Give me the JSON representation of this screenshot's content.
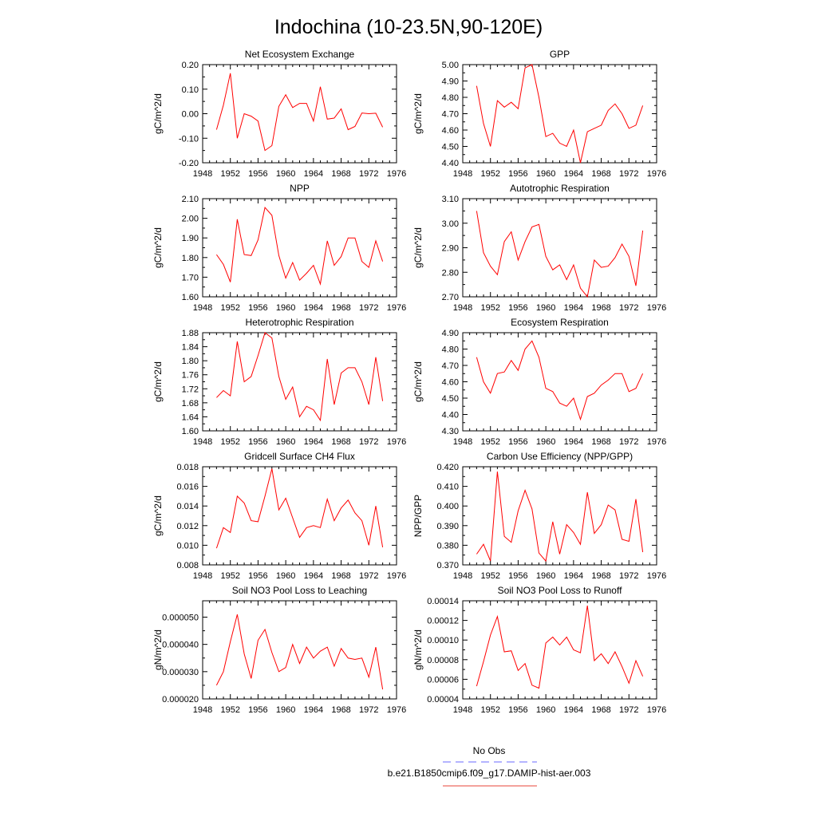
{
  "page_title": "Indochina (10-23.5N,90-120E)",
  "legend": {
    "entries": [
      {
        "label": "No Obs",
        "color": "#6a6aff",
        "dash": true
      },
      {
        "label": "b.e21.B1850cmip6.f09_g17.DAMIP-hist-aer.003",
        "color": "#e8443a",
        "dash": false
      }
    ]
  },
  "colors": {
    "series": "#ff0000"
  },
  "chart_data": [
    {
      "type": "line",
      "title": "Net Ecosystem Exchange",
      "ylabel": "gC/m^2/d",
      "xlim": [
        1948,
        1976
      ],
      "ylim": [
        -0.2,
        0.2
      ],
      "x_ticks": [
        "1948",
        "1952",
        "1956",
        "1960",
        "1964",
        "1968",
        "1972",
        "1976"
      ],
      "y_ticks": [
        "-0.20",
        "-0.10",
        "0.00",
        "0.10",
        "0.20"
      ],
      "series": [
        {
          "x": [
            1950,
            1951,
            1952,
            1953,
            1954,
            1955,
            1956,
            1957,
            1958,
            1959,
            1960,
            1961,
            1962,
            1963,
            1964,
            1965,
            1966,
            1967,
            1968,
            1969,
            1970,
            1971,
            1972,
            1973,
            1974
          ],
          "values": [
            -0.065,
            0.035,
            0.165,
            -0.1,
            0.0,
            -0.01,
            -0.03,
            -0.15,
            -0.13,
            0.03,
            0.077,
            0.025,
            0.042,
            0.042,
            -0.03,
            0.11,
            -0.022,
            -0.018,
            0.02,
            -0.065,
            -0.052,
            0.003,
            0.0,
            0.002,
            -0.055
          ]
        }
      ]
    },
    {
      "type": "line",
      "title": "GPP",
      "ylabel": "gC/m^2/d",
      "xlim": [
        1948,
        1976
      ],
      "ylim": [
        4.4,
        5.0
      ],
      "x_ticks": [
        "1948",
        "1952",
        "1956",
        "1960",
        "1964",
        "1968",
        "1972",
        "1976"
      ],
      "y_ticks": [
        "4.40",
        "4.50",
        "4.60",
        "4.70",
        "4.80",
        "4.90",
        "5.00"
      ],
      "series": [
        {
          "x": [
            1950,
            1951,
            1952,
            1953,
            1954,
            1955,
            1956,
            1957,
            1958,
            1959,
            1960,
            1961,
            1962,
            1963,
            1964,
            1965,
            1966,
            1967,
            1968,
            1969,
            1970,
            1971,
            1972,
            1973,
            1974
          ],
          "values": [
            4.87,
            4.64,
            4.5,
            4.78,
            4.74,
            4.77,
            4.73,
            4.98,
            5.0,
            4.8,
            4.56,
            4.58,
            4.52,
            4.5,
            4.6,
            4.4,
            4.59,
            4.61,
            4.63,
            4.72,
            4.76,
            4.7,
            4.61,
            4.63,
            4.75
          ]
        }
      ]
    },
    {
      "type": "line",
      "title": "NPP",
      "ylabel": "gC/m^2/d",
      "xlim": [
        1948,
        1976
      ],
      "ylim": [
        1.6,
        2.1
      ],
      "x_ticks": [
        "1948",
        "1952",
        "1956",
        "1960",
        "1964",
        "1968",
        "1972",
        "1976"
      ],
      "y_ticks": [
        "1.60",
        "1.70",
        "1.80",
        "1.90",
        "2.00",
        "2.10"
      ],
      "series": [
        {
          "x": [
            1950,
            1951,
            1952,
            1953,
            1954,
            1955,
            1956,
            1957,
            1958,
            1959,
            1960,
            1961,
            1962,
            1963,
            1964,
            1965,
            1966,
            1967,
            1968,
            1969,
            1970,
            1971,
            1972,
            1973,
            1974
          ],
          "values": [
            1.815,
            1.765,
            1.675,
            1.995,
            1.815,
            1.81,
            1.89,
            2.055,
            2.015,
            1.81,
            1.695,
            1.775,
            1.685,
            1.72,
            1.76,
            1.665,
            1.885,
            1.76,
            1.805,
            1.9,
            1.9,
            1.78,
            1.75,
            1.885,
            1.78
          ]
        }
      ]
    },
    {
      "type": "line",
      "title": "Autotrophic Respiration",
      "ylabel": "gC/m^2/d",
      "xlim": [
        1948,
        1976
      ],
      "ylim": [
        2.7,
        3.1
      ],
      "x_ticks": [
        "1948",
        "1952",
        "1956",
        "1960",
        "1964",
        "1968",
        "1972",
        "1976"
      ],
      "y_ticks": [
        "2.70",
        "2.80",
        "2.90",
        "3.00",
        "3.10"
      ],
      "series": [
        {
          "x": [
            1950,
            1951,
            1952,
            1953,
            1954,
            1955,
            1956,
            1957,
            1958,
            1959,
            1960,
            1961,
            1962,
            1963,
            1964,
            1965,
            1966,
            1967,
            1968,
            1969,
            1970,
            1971,
            1972,
            1973,
            1974
          ],
          "values": [
            3.05,
            2.88,
            2.825,
            2.79,
            2.925,
            2.965,
            2.85,
            2.925,
            2.985,
            2.995,
            2.865,
            2.81,
            2.83,
            2.77,
            2.83,
            2.735,
            2.7,
            2.85,
            2.82,
            2.825,
            2.86,
            2.915,
            2.865,
            2.745,
            2.97
          ]
        }
      ]
    },
    {
      "type": "line",
      "title": "Heterotrophic Respiration",
      "ylabel": "gC/m^2/d",
      "xlim": [
        1948,
        1976
      ],
      "ylim": [
        1.6,
        1.88
      ],
      "x_ticks": [
        "1948",
        "1952",
        "1956",
        "1960",
        "1964",
        "1968",
        "1972",
        "1976"
      ],
      "y_ticks": [
        "1.60",
        "1.64",
        "1.68",
        "1.72",
        "1.76",
        "1.80",
        "1.84",
        "1.88"
      ],
      "series": [
        {
          "x": [
            1950,
            1951,
            1952,
            1953,
            1954,
            1955,
            1956,
            1957,
            1958,
            1959,
            1960,
            1961,
            1962,
            1963,
            1964,
            1965,
            1966,
            1967,
            1968,
            1969,
            1970,
            1971,
            1972,
            1973,
            1974
          ],
          "values": [
            1.695,
            1.715,
            1.7,
            1.855,
            1.74,
            1.755,
            1.815,
            1.88,
            1.865,
            1.755,
            1.69,
            1.725,
            1.64,
            1.67,
            1.66,
            1.63,
            1.805,
            1.675,
            1.765,
            1.78,
            1.78,
            1.74,
            1.675,
            1.81,
            1.685
          ]
        }
      ]
    },
    {
      "type": "line",
      "title": "Ecosystem Respiration",
      "ylabel": "gC/m^2/d",
      "xlim": [
        1948,
        1976
      ],
      "ylim": [
        4.3,
        4.9
      ],
      "x_ticks": [
        "1948",
        "1952",
        "1956",
        "1960",
        "1964",
        "1968",
        "1972",
        "1976"
      ],
      "y_ticks": [
        "4.30",
        "4.40",
        "4.50",
        "4.60",
        "4.70",
        "4.80",
        "4.90"
      ],
      "series": [
        {
          "x": [
            1950,
            1951,
            1952,
            1953,
            1954,
            1955,
            1956,
            1957,
            1958,
            1959,
            1960,
            1961,
            1962,
            1963,
            1964,
            1965,
            1966,
            1967,
            1968,
            1969,
            1970,
            1971,
            1972,
            1973,
            1974
          ],
          "values": [
            4.75,
            4.6,
            4.53,
            4.65,
            4.66,
            4.73,
            4.67,
            4.8,
            4.85,
            4.75,
            4.56,
            4.54,
            4.47,
            4.45,
            4.5,
            4.37,
            4.51,
            4.53,
            4.58,
            4.61,
            4.65,
            4.65,
            4.54,
            4.56,
            4.65
          ]
        }
      ]
    },
    {
      "type": "line",
      "title": "Gridcell Surface CH4 Flux",
      "ylabel": "gC/m^2/d",
      "xlim": [
        1948,
        1976
      ],
      "ylim": [
        0.008,
        0.018
      ],
      "x_ticks": [
        "1948",
        "1952",
        "1956",
        "1960",
        "1964",
        "1968",
        "1972",
        "1976"
      ],
      "y_ticks": [
        "0.008",
        "0.010",
        "0.012",
        "0.014",
        "0.016",
        "0.018"
      ],
      "series": [
        {
          "x": [
            1950,
            1951,
            1952,
            1953,
            1954,
            1955,
            1956,
            1957,
            1958,
            1959,
            1960,
            1961,
            1962,
            1963,
            1964,
            1965,
            1966,
            1967,
            1968,
            1969,
            1970,
            1971,
            1972,
            1973,
            1974
          ],
          "values": [
            0.0097,
            0.0118,
            0.0113,
            0.015,
            0.0143,
            0.0125,
            0.0124,
            0.015,
            0.0178,
            0.0136,
            0.0148,
            0.0128,
            0.0108,
            0.0118,
            0.012,
            0.0118,
            0.0147,
            0.0125,
            0.0138,
            0.0146,
            0.0133,
            0.0125,
            0.01,
            0.014,
            0.0098
          ]
        }
      ]
    },
    {
      "type": "line",
      "title": "Carbon Use Efficiency (NPP/GPP)",
      "ylabel": "NPP/GPP",
      "xlim": [
        1948,
        1976
      ],
      "ylim": [
        0.37,
        0.42
      ],
      "x_ticks": [
        "1948",
        "1952",
        "1956",
        "1960",
        "1964",
        "1968",
        "1972",
        "1976"
      ],
      "y_ticks": [
        "0.370",
        "0.380",
        "0.390",
        "0.400",
        "0.410",
        "0.420"
      ],
      "series": [
        {
          "x": [
            1950,
            1951,
            1952,
            1953,
            1954,
            1955,
            1956,
            1957,
            1958,
            1959,
            1960,
            1961,
            1962,
            1963,
            1964,
            1965,
            1966,
            1967,
            1968,
            1969,
            1970,
            1971,
            1972,
            1973,
            1974
          ],
          "values": [
            0.3755,
            0.3805,
            0.372,
            0.4175,
            0.3845,
            0.3815,
            0.3975,
            0.408,
            0.3985,
            0.376,
            0.372,
            0.392,
            0.3755,
            0.3905,
            0.3865,
            0.3805,
            0.407,
            0.386,
            0.3905,
            0.4005,
            0.398,
            0.383,
            0.382,
            0.4035,
            0.3765
          ]
        }
      ]
    },
    {
      "type": "line",
      "title": "Soil NO3 Pool Loss to Leaching",
      "ylabel": "gN/m^2/d",
      "xlim": [
        1948,
        1976
      ],
      "ylim": [
        2e-05,
        5.6e-05
      ],
      "x_ticks": [
        "1948",
        "1952",
        "1956",
        "1960",
        "1964",
        "1968",
        "1972",
        "1976"
      ],
      "y_ticks": [
        "0.000020",
        "0.000030",
        "0.000040",
        "0.000050"
      ],
      "y_tick_values": [
        2e-05,
        3e-05,
        4e-05,
        5e-05
      ],
      "series": [
        {
          "x": [
            1950,
            1951,
            1952,
            1953,
            1954,
            1955,
            1956,
            1957,
            1958,
            1959,
            1960,
            1961,
            1962,
            1963,
            1964,
            1965,
            1966,
            1967,
            1968,
            1969,
            1970,
            1971,
            1972,
            1973,
            1974
          ],
          "values": [
            2.5e-05,
            3e-05,
            4.1e-05,
            5.1e-05,
            3.65e-05,
            2.75e-05,
            4.15e-05,
            4.55e-05,
            3.7e-05,
            3e-05,
            3.15e-05,
            4e-05,
            3.3e-05,
            3.9e-05,
            3.5e-05,
            3.75e-05,
            3.9e-05,
            3.2e-05,
            3.85e-05,
            3.5e-05,
            3.45e-05,
            3.5e-05,
            2.8e-05,
            3.9e-05,
            2.35e-05
          ]
        }
      ]
    },
    {
      "type": "line",
      "title": "Soil NO3 Pool Loss to Runoff",
      "ylabel": "gN/m^2/d",
      "xlim": [
        1948,
        1976
      ],
      "ylim": [
        4e-05,
        0.00014
      ],
      "x_ticks": [
        "1948",
        "1952",
        "1956",
        "1960",
        "1964",
        "1968",
        "1972",
        "1976"
      ],
      "y_ticks": [
        "0.00004",
        "0.00006",
        "0.00008",
        "0.00010",
        "0.00012",
        "0.00014"
      ],
      "series": [
        {
          "x": [
            1950,
            1951,
            1952,
            1953,
            1954,
            1955,
            1956,
            1957,
            1958,
            1959,
            1960,
            1961,
            1962,
            1963,
            1964,
            1965,
            1966,
            1967,
            1968,
            1969,
            1970,
            1971,
            1972,
            1973,
            1974
          ],
          "values": [
            5.3e-05,
            7.8e-05,
            0.000105,
            0.000124,
            8.8e-05,
            8.9e-05,
            6.9e-05,
            7.6e-05,
            5.4e-05,
            5.1e-05,
            9.7e-05,
            0.000103,
            9.5e-05,
            0.000103,
            9e-05,
            8.7e-05,
            0.000135,
            7.9e-05,
            8.6e-05,
            7.6e-05,
            8.8e-05,
            7.3e-05,
            5.6e-05,
            7.9e-05,
            6.3e-05
          ]
        }
      ]
    }
  ]
}
